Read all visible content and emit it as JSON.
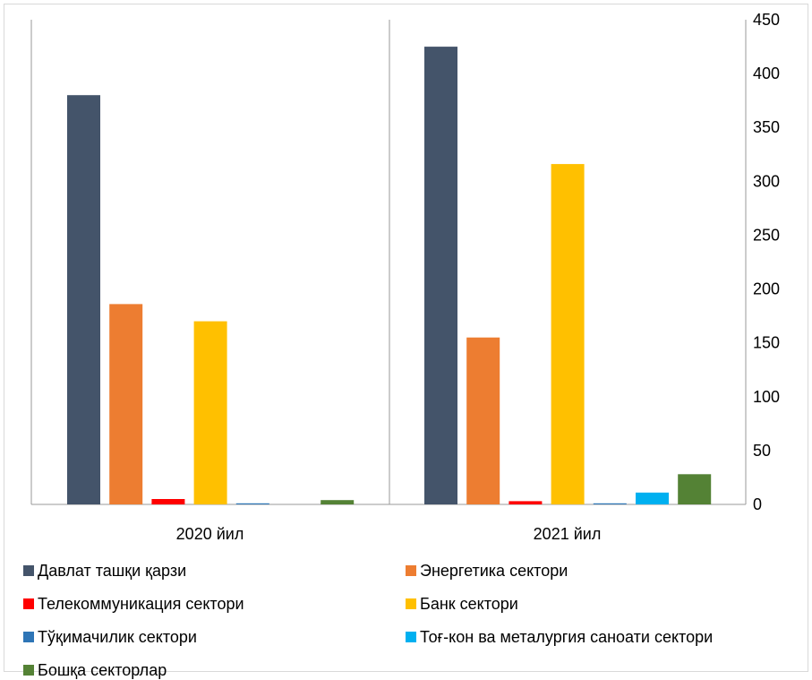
{
  "chart_data": {
    "type": "bar",
    "categories": [
      "2020 йил",
      "2021 йил"
    ],
    "series": [
      {
        "name": "Давлат ташқи қарзи",
        "color": "#44546a",
        "values": [
          380,
          425
        ]
      },
      {
        "name": "Энергетика сектори",
        "color": "#ed7d31",
        "values": [
          186,
          155
        ]
      },
      {
        "name": "Телекоммуникация сектори",
        "color": "#ff0000",
        "values": [
          5,
          3
        ]
      },
      {
        "name": "Банк сектори",
        "color": "#ffc000",
        "values": [
          170,
          316
        ]
      },
      {
        "name": "Тўқимачилик сектори",
        "color": "#2e75b6",
        "values": [
          1,
          1
        ]
      },
      {
        "name": "Тоғ-кон ва металургия саноати сектори",
        "color": "#00b0f0",
        "values": [
          0,
          11
        ]
      },
      {
        "name": "Бошқа секторлар",
        "color": "#548235",
        "values": [
          4,
          28
        ]
      }
    ],
    "yaxis_side": "right",
    "ylim": [
      0,
      450
    ],
    "yticks": [
      0,
      50,
      100,
      150,
      200,
      250,
      300,
      350,
      400,
      450
    ],
    "grid": false,
    "legend_position": "bottom"
  }
}
